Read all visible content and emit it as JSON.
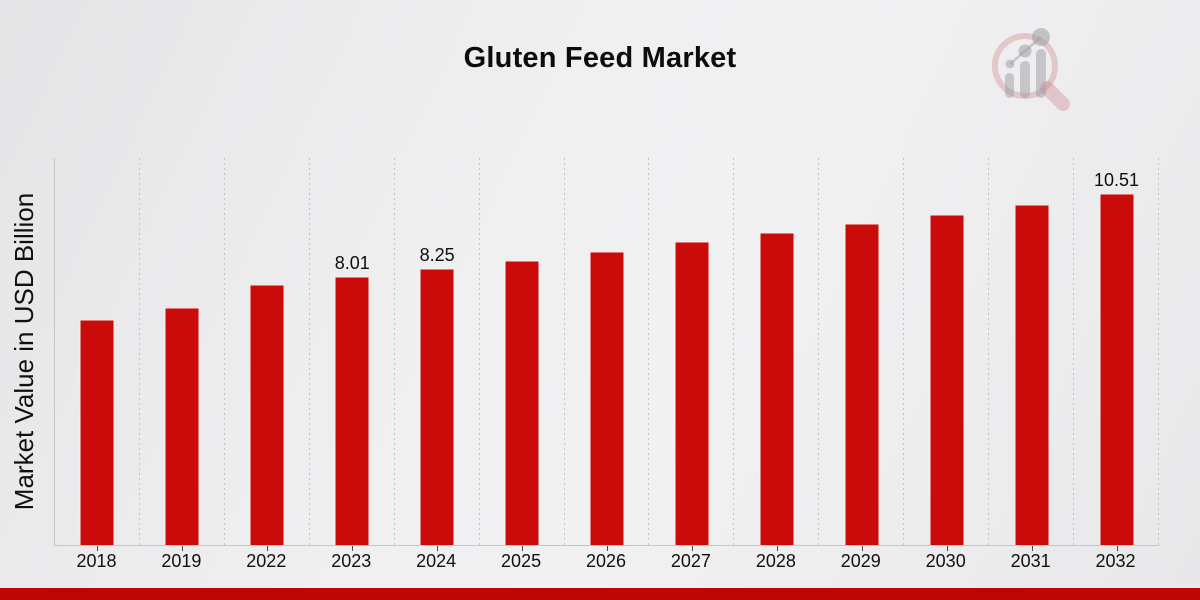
{
  "header": {
    "title": "Gluten Feed Market"
  },
  "logo": {
    "icon": "magnifier-bar-chart-watermark"
  },
  "chart_data": {
    "type": "bar",
    "title": "Gluten Feed Market",
    "xlabel": "",
    "ylabel": "Market Value in USD Billion",
    "categories": [
      "2018",
      "2019",
      "2022",
      "2023",
      "2024",
      "2025",
      "2026",
      "2027",
      "2028",
      "2029",
      "2030",
      "2031",
      "2032"
    ],
    "values": [
      6.71,
      7.08,
      7.77,
      8.01,
      8.25,
      8.5,
      8.76,
      9.05,
      9.33,
      9.6,
      9.88,
      10.18,
      10.51
    ],
    "data_labels": [
      "",
      "",
      "",
      "8.01",
      "8.25",
      "",
      "",
      "",
      "",
      "",
      "",
      "",
      "10.51"
    ],
    "ylim": [
      0,
      11.61
    ],
    "grid": "vertical-dotted",
    "legend_position": "none",
    "bar_color": "#cb0a0a",
    "gridline_color": "#c4c4c4",
    "axis_color": "#c6c6c6",
    "text_color": "#101010"
  },
  "footer": {
    "banner_color": "#bd0505"
  }
}
